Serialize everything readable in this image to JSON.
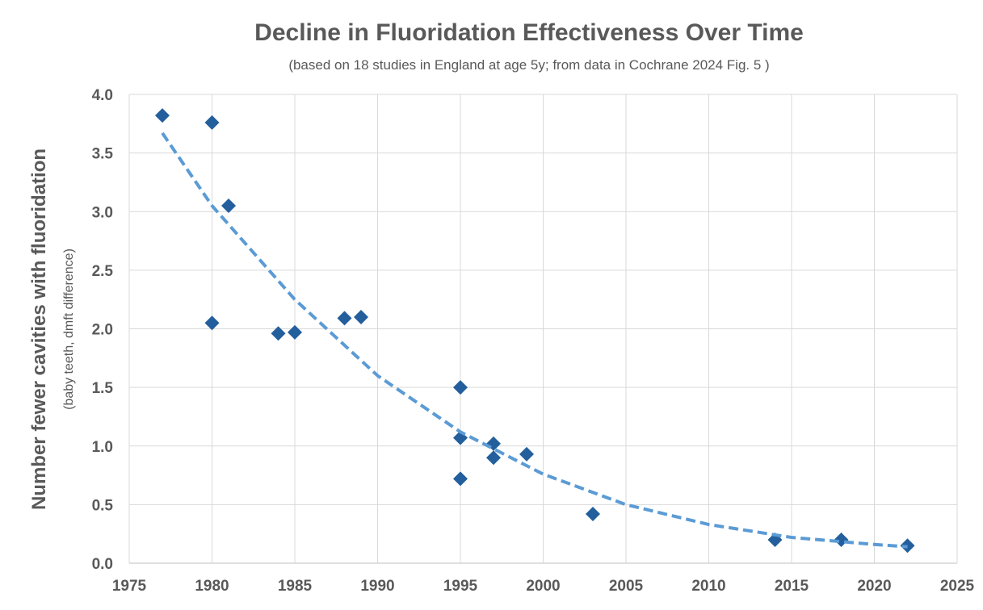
{
  "chart_data": {
    "type": "scatter",
    "title": "Decline in Fluoridation Effectiveness Over Time",
    "subtitle": "(based on 18 studies in England at age 5y; from data in Cochrane 2024 Fig. 5 )",
    "y_label": "Number fewer cavities with fluoridation",
    "y_sublabel": "(baby teeth, dmft difference)",
    "xlim": [
      1975,
      2025
    ],
    "xticks": [
      1975,
      1980,
      1985,
      1990,
      1995,
      2000,
      2005,
      2010,
      2015,
      2020,
      2025
    ],
    "ylim": [
      0,
      4
    ],
    "yticks": [
      {
        "value": 0,
        "label": "0.0"
      },
      {
        "value": 0.5,
        "label": "0.5"
      },
      {
        "value": 1,
        "label": "1.0"
      },
      {
        "value": 1.5,
        "label": "1.5"
      },
      {
        "value": 2,
        "label": "2.0"
      },
      {
        "value": 2.5,
        "label": "2.5"
      },
      {
        "value": 3,
        "label": "3.0"
      },
      {
        "value": 3.5,
        "label": "3.5"
      },
      {
        "value": 4,
        "label": "4.0"
      }
    ],
    "grid": true,
    "series": [
      {
        "color": "#235f9c",
        "marker": "diamond",
        "x": [
          1977,
          1980,
          1980,
          1981,
          1984,
          1985,
          1988,
          1989,
          1995,
          1995,
          1995,
          1997,
          1997,
          1999,
          2003,
          2014,
          2018,
          2022
        ],
        "values": [
          3.82,
          3.76,
          2.05,
          3.05,
          1.96,
          1.97,
          2.09,
          2.1,
          1.5,
          1.07,
          0.72,
          1.02,
          0.9,
          0.93,
          0.42,
          0.2,
          0.2,
          0.15
        ]
      },
      {
        "color": "#5b9bd5",
        "line": "dashed",
        "trendline": true,
        "x": [
          1977,
          1980,
          1985,
          1990,
          1995,
          2000,
          2005,
          2010,
          2015,
          2020,
          2022
        ],
        "values": [
          3.67,
          3.05,
          2.25,
          1.6,
          1.12,
          0.76,
          0.5,
          0.33,
          0.22,
          0.16,
          0.14
        ]
      }
    ]
  }
}
